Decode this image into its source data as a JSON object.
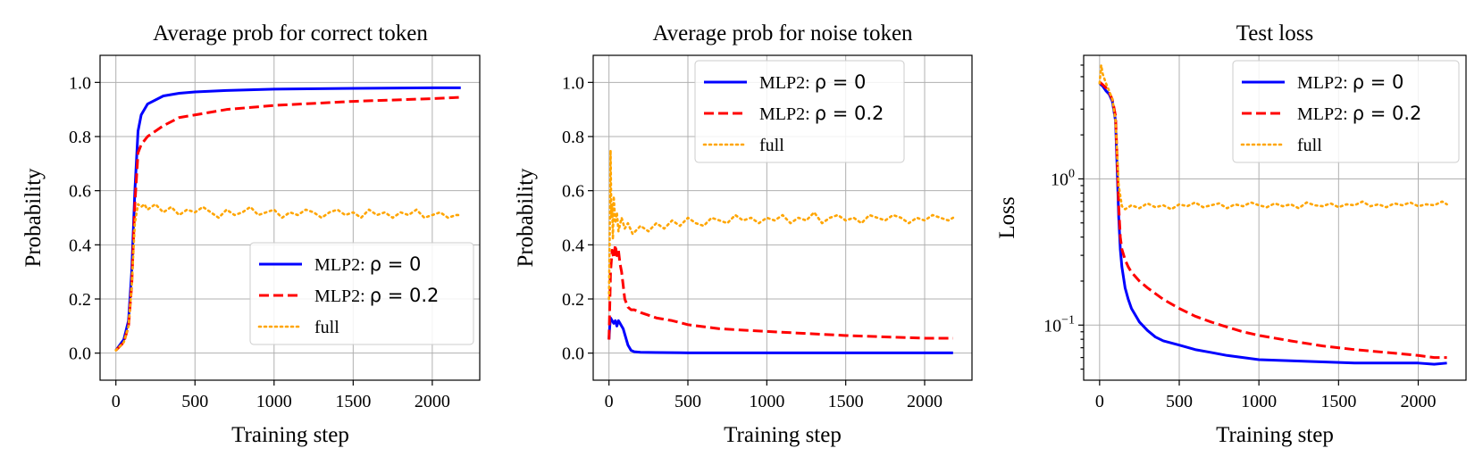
{
  "chart_data": [
    {
      "type": "line",
      "title": "Average prob for correct token",
      "xlabel": "Training step",
      "ylabel": "Probability",
      "xlim": [
        -100,
        2300
      ],
      "ylim": [
        -0.1,
        1.1
      ],
      "xticks": [
        0,
        500,
        1000,
        1500,
        2000
      ],
      "yticks": [
        0.0,
        0.2,
        0.4,
        0.6,
        0.8,
        1.0
      ],
      "ytick_labels": [
        "0.0",
        "0.2",
        "0.4",
        "0.6",
        "0.8",
        "1.0"
      ],
      "yscale": "linear",
      "grid": true,
      "legend_position": "lower-right",
      "series": [
        {
          "name": "MLP2: ρ = 0",
          "legend_prefix": "MLP2: ",
          "legend_math": "ρ = 0",
          "color": "#0000ff",
          "style": "solid",
          "x": [
            0,
            50,
            80,
            100,
            120,
            140,
            160,
            200,
            300,
            400,
            500,
            700,
            1000,
            1500,
            2000,
            2180
          ],
          "y": [
            0.01,
            0.05,
            0.12,
            0.3,
            0.6,
            0.82,
            0.88,
            0.92,
            0.95,
            0.96,
            0.965,
            0.97,
            0.975,
            0.978,
            0.98,
            0.98
          ]
        },
        {
          "name": "MLP2: ρ = 0.2",
          "legend_prefix": "MLP2: ",
          "legend_math": "ρ = 0.2",
          "color": "#ff0000",
          "style": "dashed",
          "x": [
            0,
            50,
            80,
            100,
            120,
            140,
            160,
            200,
            300,
            400,
            500,
            700,
            1000,
            1500,
            2000,
            2180
          ],
          "y": [
            0.01,
            0.04,
            0.1,
            0.25,
            0.55,
            0.74,
            0.77,
            0.8,
            0.84,
            0.87,
            0.88,
            0.9,
            0.915,
            0.93,
            0.94,
            0.945
          ]
        },
        {
          "name": "full",
          "legend_prefix": "full",
          "legend_math": "",
          "color": "#ffa500",
          "style": "dotted",
          "x": [
            0,
            50,
            80,
            100,
            120,
            140,
            160,
            180,
            200,
            250,
            300,
            350,
            400,
            450,
            500,
            550,
            600,
            650,
            700,
            750,
            800,
            850,
            900,
            950,
            1000,
            1050,
            1100,
            1150,
            1200,
            1250,
            1300,
            1350,
            1400,
            1450,
            1500,
            1550,
            1600,
            1650,
            1700,
            1750,
            1800,
            1850,
            1900,
            1950,
            2000,
            2050,
            2100,
            2150,
            2180
          ],
          "y": [
            0.01,
            0.04,
            0.1,
            0.25,
            0.48,
            0.55,
            0.54,
            0.55,
            0.53,
            0.55,
            0.52,
            0.54,
            0.51,
            0.53,
            0.52,
            0.54,
            0.52,
            0.5,
            0.53,
            0.51,
            0.52,
            0.54,
            0.51,
            0.52,
            0.53,
            0.5,
            0.52,
            0.51,
            0.53,
            0.52,
            0.5,
            0.52,
            0.53,
            0.51,
            0.52,
            0.5,
            0.53,
            0.51,
            0.52,
            0.5,
            0.52,
            0.51,
            0.53,
            0.5,
            0.51,
            0.52,
            0.5,
            0.51,
            0.51
          ]
        }
      ]
    },
    {
      "type": "line",
      "title": "Average prob for noise token",
      "xlabel": "Training step",
      "ylabel": "Probability",
      "xlim": [
        -100,
        2300
      ],
      "ylim": [
        -0.1,
        1.1
      ],
      "xticks": [
        0,
        500,
        1000,
        1500,
        2000
      ],
      "yticks": [
        0.0,
        0.2,
        0.4,
        0.6,
        0.8,
        1.0
      ],
      "ytick_labels": [
        "0.0",
        "0.2",
        "0.4",
        "0.6",
        "0.8",
        "1.0"
      ],
      "yscale": "linear",
      "grid": true,
      "legend_position": "top-right",
      "series": [
        {
          "name": "MLP2: ρ = 0",
          "legend_prefix": "MLP2: ",
          "legend_math": "ρ = 0",
          "color": "#0000ff",
          "style": "solid",
          "x": [
            0,
            5,
            10,
            20,
            30,
            40,
            50,
            60,
            70,
            80,
            90,
            100,
            110,
            120,
            140,
            160,
            200,
            300,
            500,
            1000,
            1500,
            2000,
            2180
          ],
          "y": [
            0.05,
            0.1,
            0.13,
            0.12,
            0.11,
            0.12,
            0.1,
            0.12,
            0.11,
            0.1,
            0.09,
            0.07,
            0.05,
            0.03,
            0.01,
            0.005,
            0.003,
            0.002,
            0.001,
            0.001,
            0.001,
            0.001,
            0.001
          ]
        },
        {
          "name": "MLP2: ρ = 0.2",
          "legend_prefix": "MLP2: ",
          "legend_math": "ρ = 0.2",
          "color": "#ff0000",
          "style": "dashed",
          "x": [
            0,
            10,
            20,
            30,
            40,
            50,
            60,
            70,
            80,
            90,
            100,
            120,
            140,
            160,
            200,
            300,
            400,
            500,
            700,
            1000,
            1500,
            2000,
            2180
          ],
          "y": [
            0.05,
            0.3,
            0.38,
            0.35,
            0.4,
            0.36,
            0.38,
            0.33,
            0.3,
            0.25,
            0.2,
            0.17,
            0.16,
            0.16,
            0.15,
            0.13,
            0.12,
            0.105,
            0.09,
            0.08,
            0.065,
            0.055,
            0.055
          ]
        },
        {
          "name": "full",
          "legend_prefix": "full",
          "legend_math": "",
          "color": "#ffa500",
          "style": "dotted",
          "x": [
            0,
            5,
            10,
            15,
            20,
            25,
            30,
            40,
            50,
            60,
            80,
            100,
            120,
            150,
            200,
            250,
            300,
            350,
            400,
            450,
            500,
            550,
            600,
            650,
            700,
            750,
            800,
            850,
            900,
            950,
            1000,
            1050,
            1100,
            1150,
            1200,
            1250,
            1300,
            1350,
            1400,
            1450,
            1500,
            1550,
            1600,
            1650,
            1700,
            1750,
            1800,
            1850,
            1900,
            1950,
            2000,
            2050,
            2100,
            2150,
            2180
          ],
          "y": [
            0.2,
            0.45,
            0.75,
            0.5,
            0.55,
            0.42,
            0.58,
            0.48,
            0.52,
            0.45,
            0.5,
            0.46,
            0.48,
            0.44,
            0.47,
            0.45,
            0.48,
            0.46,
            0.49,
            0.47,
            0.5,
            0.48,
            0.47,
            0.5,
            0.49,
            0.48,
            0.51,
            0.49,
            0.5,
            0.48,
            0.5,
            0.49,
            0.51,
            0.48,
            0.5,
            0.49,
            0.52,
            0.48,
            0.5,
            0.51,
            0.49,
            0.5,
            0.48,
            0.51,
            0.5,
            0.49,
            0.51,
            0.5,
            0.48,
            0.5,
            0.49,
            0.51,
            0.5,
            0.49,
            0.5
          ]
        }
      ]
    },
    {
      "type": "line",
      "title": "Test loss",
      "xlabel": "Training step",
      "ylabel": "Loss",
      "xlim": [
        -100,
        2300
      ],
      "ylim": [
        0.042,
        7.0
      ],
      "xticks": [
        0,
        500,
        1000,
        1500,
        2000
      ],
      "yticks_major": [
        1.0,
        0.1
      ],
      "ytick_labels_major": [
        {
          "base": "10",
          "exp": "0"
        },
        {
          "base": "10",
          "exp": "−1"
        }
      ],
      "yscale": "log",
      "grid": true,
      "legend_position": "top-right",
      "series": [
        {
          "name": "MLP2: ρ = 0",
          "legend_prefix": "MLP2: ",
          "legend_math": "ρ = 0",
          "color": "#0000ff",
          "style": "solid",
          "x": [
            0,
            20,
            40,
            60,
            80,
            100,
            110,
            120,
            130,
            140,
            160,
            180,
            200,
            250,
            300,
            350,
            400,
            500,
            600,
            700,
            800,
            900,
            1000,
            1200,
            1400,
            1600,
            1800,
            2000,
            2100,
            2180
          ],
          "y": [
            4.5,
            4.3,
            4.0,
            3.8,
            3.4,
            2.5,
            1.2,
            0.55,
            0.33,
            0.25,
            0.18,
            0.15,
            0.13,
            0.105,
            0.092,
            0.083,
            0.078,
            0.073,
            0.068,
            0.065,
            0.062,
            0.06,
            0.058,
            0.057,
            0.056,
            0.055,
            0.055,
            0.055,
            0.054,
            0.055
          ]
        },
        {
          "name": "MLP2: ρ = 0.2",
          "legend_prefix": "MLP2: ",
          "legend_math": "ρ = 0.2",
          "color": "#ff0000",
          "style": "dashed",
          "x": [
            0,
            20,
            40,
            60,
            80,
            100,
            110,
            120,
            130,
            140,
            160,
            180,
            200,
            250,
            300,
            400,
            500,
            600,
            700,
            800,
            900,
            1000,
            1200,
            1400,
            1600,
            1800,
            2000,
            2100,
            2180
          ],
          "y": [
            4.6,
            4.4,
            4.2,
            3.9,
            3.5,
            2.7,
            1.4,
            0.65,
            0.4,
            0.33,
            0.28,
            0.25,
            0.23,
            0.2,
            0.18,
            0.15,
            0.13,
            0.115,
            0.105,
            0.097,
            0.09,
            0.085,
            0.078,
            0.072,
            0.068,
            0.065,
            0.062,
            0.06,
            0.06
          ]
        },
        {
          "name": "full",
          "legend_prefix": "full",
          "legend_math": "",
          "color": "#ffa500",
          "style": "dotted",
          "x": [
            0,
            10,
            20,
            40,
            60,
            80,
            100,
            110,
            120,
            140,
            160,
            200,
            250,
            300,
            350,
            400,
            450,
            500,
            550,
            600,
            650,
            700,
            750,
            800,
            850,
            900,
            950,
            1000,
            1050,
            1100,
            1150,
            1200,
            1250,
            1300,
            1350,
            1400,
            1450,
            1500,
            1550,
            1600,
            1650,
            1700,
            1750,
            1800,
            1850,
            1900,
            1950,
            2000,
            2050,
            2100,
            2150,
            2180
          ],
          "y": [
            4.5,
            6.0,
            5.2,
            4.5,
            4.0,
            3.5,
            2.5,
            1.5,
            0.9,
            0.65,
            0.62,
            0.66,
            0.63,
            0.68,
            0.64,
            0.66,
            0.62,
            0.67,
            0.65,
            0.69,
            0.64,
            0.66,
            0.68,
            0.63,
            0.67,
            0.65,
            0.69,
            0.66,
            0.64,
            0.68,
            0.65,
            0.67,
            0.63,
            0.69,
            0.66,
            0.65,
            0.68,
            0.64,
            0.67,
            0.66,
            0.7,
            0.65,
            0.67,
            0.64,
            0.68,
            0.66,
            0.69,
            0.65,
            0.67,
            0.66,
            0.7,
            0.67
          ]
        }
      ]
    }
  ]
}
